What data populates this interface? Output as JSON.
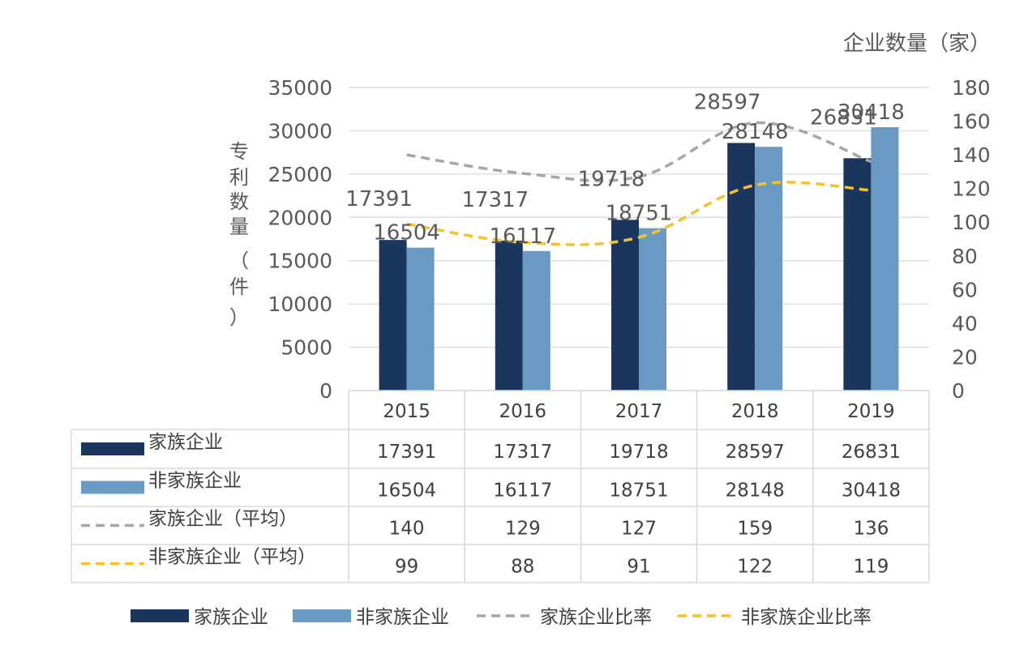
{
  "chart_data": {
    "type": "bar",
    "categories": [
      "2015",
      "2016",
      "2017",
      "2018",
      "2019"
    ],
    "ylabel": "专利数量（件）",
    "y2label": "企业数量（家）",
    "ylim": [
      0,
      35000
    ],
    "y2lim": [
      0,
      180
    ],
    "yticks": [
      "0",
      "5000",
      "10000",
      "15000",
      "20000",
      "25000",
      "30000",
      "35000"
    ],
    "y2ticks": [
      "0",
      "20",
      "40",
      "60",
      "80",
      "100",
      "120",
      "140",
      "160",
      "180"
    ],
    "grid": true,
    "series": [
      {
        "name": "家族企业",
        "kind": "bar",
        "axis": "left",
        "color": "#1b365d",
        "values": [
          17391,
          17317,
          19718,
          28597,
          26831
        ]
      },
      {
        "name": "非家族企业",
        "kind": "bar",
        "axis": "left",
        "color": "#6a9ac4",
        "values": [
          16504,
          16117,
          18751,
          28148,
          30418
        ]
      },
      {
        "name": "家族企业（平均）",
        "kind": "line",
        "axis": "right",
        "color": "#a6a6a6",
        "dashed": true,
        "values": [
          140,
          129,
          127,
          159,
          136
        ]
      },
      {
        "name": "非家族企业（平均）",
        "kind": "line",
        "axis": "right",
        "color": "#f5c12e",
        "dashed": true,
        "values": [
          99,
          88,
          91,
          122,
          119
        ]
      }
    ],
    "legend": {
      "position": "bottom",
      "items": [
        {
          "label": "家族企业",
          "kind": "bar",
          "color": "#1b365d"
        },
        {
          "label": "非家族企业",
          "kind": "bar",
          "color": "#6a9ac4"
        },
        {
          "label": "家族企业比率",
          "kind": "line",
          "color": "#a6a6a6"
        },
        {
          "label": "非家族企业比率",
          "kind": "line",
          "color": "#f5c12e"
        }
      ]
    },
    "data_table": true
  }
}
